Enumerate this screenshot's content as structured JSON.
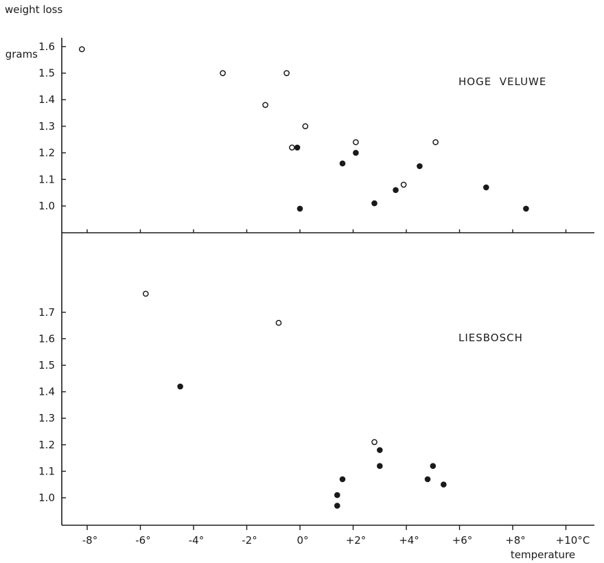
{
  "chart_data": {
    "type": "scatter",
    "ylabel": "weight loss",
    "y_unit": "grams",
    "xlabel": "temperature",
    "x_ticks": [
      "-8°",
      "-6°",
      "-4°",
      "-2°",
      "0°",
      "+2°",
      "+4°",
      "+6°",
      "+8°",
      "+10°C"
    ],
    "xlim": [
      -9,
      11
    ],
    "panels": [
      {
        "label": "HOGE  VELUWE",
        "ylim": [
          0.9,
          1.65
        ],
        "y_ticks": [
          "1.0",
          "1.1",
          "1.2",
          "1.3",
          "1.4",
          "1.5",
          "1.6"
        ],
        "series": [
          {
            "marker": "open",
            "points": [
              {
                "x": -8.2,
                "y": 1.59
              },
              {
                "x": -2.9,
                "y": 1.5
              },
              {
                "x": -0.5,
                "y": 1.5
              },
              {
                "x": -1.3,
                "y": 1.38
              },
              {
                "x": 0.2,
                "y": 1.3
              },
              {
                "x": -0.3,
                "y": 1.22
              },
              {
                "x": 2.1,
                "y": 1.24
              },
              {
                "x": 5.1,
                "y": 1.24
              },
              {
                "x": 3.9,
                "y": 1.08
              }
            ]
          },
          {
            "marker": "filled",
            "points": [
              {
                "x": -0.1,
                "y": 1.22
              },
              {
                "x": 2.1,
                "y": 1.2
              },
              {
                "x": 1.6,
                "y": 1.16
              },
              {
                "x": 4.5,
                "y": 1.15
              },
              {
                "x": 3.6,
                "y": 1.06
              },
              {
                "x": 7.0,
                "y": 1.07
              },
              {
                "x": 2.8,
                "y": 1.01
              },
              {
                "x": 0.0,
                "y": 0.99
              },
              {
                "x": 8.5,
                "y": 0.99
              }
            ]
          }
        ]
      },
      {
        "label": "LIESBOSCH",
        "ylim": [
          0.9,
          1.85
        ],
        "y_ticks": [
          "1.0",
          "1.1",
          "1.2",
          "1.3",
          "1.4",
          "1.5",
          "1.6",
          "1.7"
        ],
        "series": [
          {
            "marker": "open",
            "points": [
              {
                "x": -5.8,
                "y": 1.77
              },
              {
                "x": -0.8,
                "y": 1.66
              },
              {
                "x": 2.8,
                "y": 1.21
              }
            ]
          },
          {
            "marker": "filled",
            "points": [
              {
                "x": -4.5,
                "y": 1.42
              },
              {
                "x": 3.0,
                "y": 1.18
              },
              {
                "x": 3.0,
                "y": 1.12
              },
              {
                "x": 5.0,
                "y": 1.12
              },
              {
                "x": 1.6,
                "y": 1.07
              },
              {
                "x": 4.8,
                "y": 1.07
              },
              {
                "x": 5.4,
                "y": 1.05
              },
              {
                "x": 1.4,
                "y": 1.01
              },
              {
                "x": 1.4,
                "y": 0.97
              }
            ]
          }
        ]
      }
    ]
  }
}
